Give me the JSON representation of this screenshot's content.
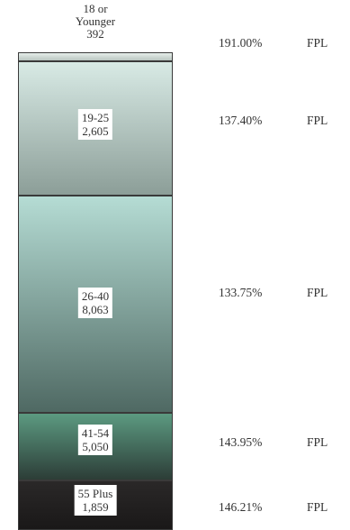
{
  "chart_data": {
    "type": "bar",
    "stacked": true,
    "categories": [
      "18 or Younger",
      "19-25",
      "26-40",
      "41-54",
      "55 Plus"
    ],
    "values": [
      392,
      2605,
      8063,
      5050,
      1859
    ],
    "fpl": [
      "191.00%",
      "137.40%",
      "133.75%",
      "143.95%",
      "146.21%"
    ],
    "fpl_unit": "FPL",
    "segments": [
      {
        "label": "18 or Younger",
        "value": "392",
        "fpl": "191.00%",
        "color_top": "#e6eeea",
        "color_bottom": "#b9c5c0"
      },
      {
        "label": "19-25",
        "value": "2,605",
        "fpl": "137.40%",
        "color_top": "#d8eae5",
        "color_bottom": "#8c9e98"
      },
      {
        "label": "26-40",
        "value": "8,063",
        "fpl": "133.75%",
        "color_top": "#b5dcd4",
        "color_bottom": "#4f6963"
      },
      {
        "label": "41-54",
        "value": "5,050",
        "fpl": "143.95%",
        "color_top": "#5c9a81",
        "color_bottom": "#2c3d37"
      },
      {
        "label": "55 Plus",
        "value": "1,859",
        "fpl": "146.21%",
        "color_top": "#2a2828",
        "color_bottom": "#1a1818"
      }
    ]
  }
}
